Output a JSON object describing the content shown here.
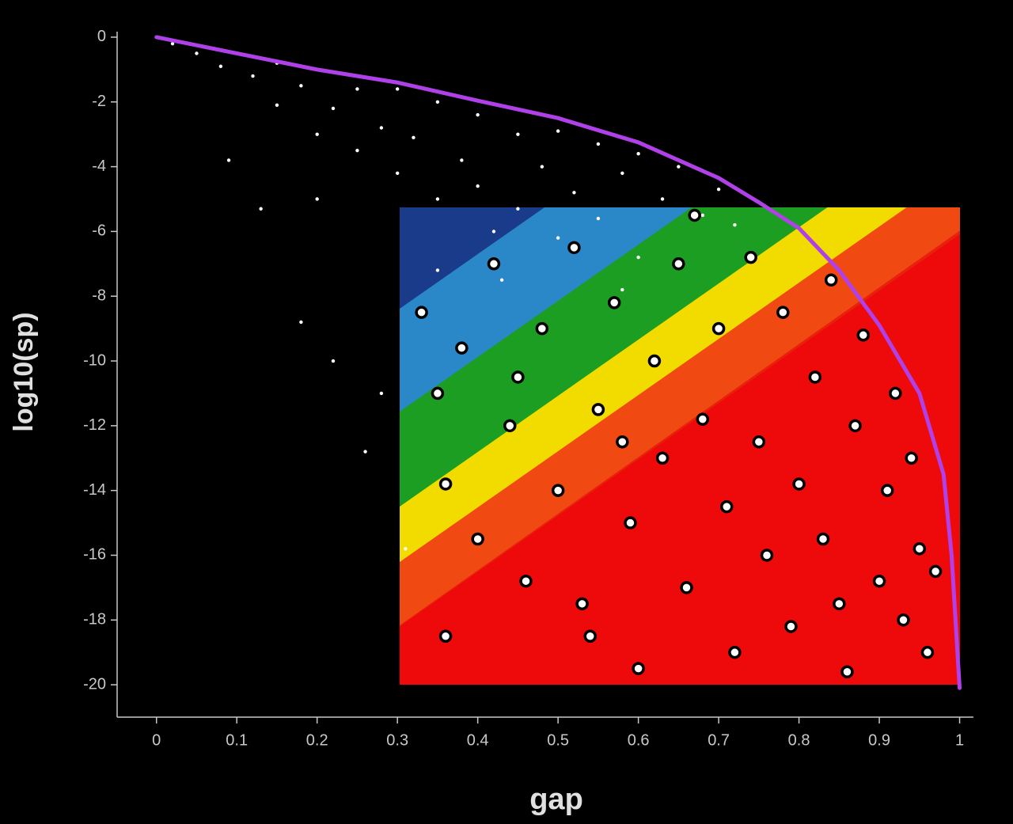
{
  "chart_data": {
    "type": "scatter",
    "x_label": "gap",
    "y_label": "log10(sp)",
    "xlim": [
      -0.049,
      1.03
    ],
    "ylim": [
      -21,
      0.17
    ],
    "xticks": [
      0,
      0.1,
      0.2,
      0.3,
      0.4,
      0.5,
      0.6,
      0.7,
      0.8,
      0.9,
      1
    ],
    "yticks": [
      0,
      -2,
      -4,
      -6,
      -8,
      -10,
      -12,
      -14,
      -16,
      -18,
      -20
    ],
    "axis_color": "#c8c8c8",
    "series": [
      {
        "type": "scatter",
        "style": "dot",
        "color": "#ffffff",
        "x": [
          0.02,
          0.05,
          0.08,
          0.1,
          0.12,
          0.15,
          0.15,
          0.18,
          0.2,
          0.2,
          0.22,
          0.25,
          0.25,
          0.28,
          0.3,
          0.3,
          0.32,
          0.35,
          0.35,
          0.38,
          0.4,
          0.4,
          0.42,
          0.45,
          0.45,
          0.48,
          0.5,
          0.5,
          0.52,
          0.55,
          0.55,
          0.58,
          0.6,
          0.6,
          0.63,
          0.65,
          0.68,
          0.7,
          0.72,
          0.2,
          0.18,
          0.22,
          0.26,
          0.28,
          0.31,
          0.13,
          0.09,
          0.35,
          0.43,
          0.58
        ],
        "values": [
          -0.2,
          -0.5,
          -0.9,
          -0.5,
          -1.2,
          -0.8,
          -2.1,
          -1.5,
          -1.0,
          -3.0,
          -2.2,
          -1.6,
          -3.5,
          -2.8,
          -1.6,
          -4.2,
          -3.1,
          -2.0,
          -5.0,
          -3.8,
          -2.4,
          -4.6,
          -6.0,
          -3.0,
          -5.3,
          -4.0,
          -2.9,
          -6.2,
          -4.8,
          -3.3,
          -5.6,
          -4.2,
          -3.6,
          -6.8,
          -5.0,
          -4.0,
          -5.5,
          -4.7,
          -5.8,
          -5.0,
          -8.8,
          -10.0,
          -12.8,
          -11.0,
          -15.8,
          -5.3,
          -3.8,
          -7.2,
          -7.5,
          -7.8
        ]
      },
      {
        "type": "scatter",
        "style": "ring",
        "color": "#ffffff",
        "x": [
          0.33,
          0.35,
          0.36,
          0.38,
          0.4,
          0.42,
          0.44,
          0.46,
          0.48,
          0.5,
          0.52,
          0.54,
          0.55,
          0.57,
          0.59,
          0.6,
          0.62,
          0.63,
          0.65,
          0.66,
          0.68,
          0.7,
          0.71,
          0.72,
          0.74,
          0.75,
          0.76,
          0.78,
          0.79,
          0.8,
          0.82,
          0.83,
          0.84,
          0.86,
          0.87,
          0.88,
          0.9,
          0.91,
          0.92,
          0.93,
          0.94,
          0.95,
          0.96,
          0.97,
          0.36,
          0.45,
          0.53,
          0.67,
          0.85,
          0.58
        ],
        "values": [
          -8.5,
          -11.0,
          -13.8,
          -9.6,
          -15.5,
          -7.0,
          -12.0,
          -16.8,
          -9.0,
          -14.0,
          -6.5,
          -18.5,
          -11.5,
          -8.2,
          -15.0,
          -19.5,
          -10.0,
          -13.0,
          -7.0,
          -17.0,
          -11.8,
          -9.0,
          -14.5,
          -19.0,
          -6.8,
          -12.5,
          -16.0,
          -8.5,
          -18.2,
          -13.8,
          -10.5,
          -15.5,
          -7.5,
          -19.6,
          -12.0,
          -9.2,
          -16.8,
          -14.0,
          -11.0,
          -18.0,
          -13.0,
          -15.8,
          -19.0,
          -16.5,
          -18.5,
          -10.5,
          -17.5,
          -5.5,
          -17.5,
          -12.5
        ]
      },
      {
        "type": "line",
        "color": "#b040e8",
        "x": [
          0,
          0.1,
          0.2,
          0.3,
          0.4,
          0.5,
          0.6,
          0.7,
          0.75,
          0.8,
          0.85,
          0.9,
          0.95,
          0.98,
          0.99,
          1
        ],
        "values": [
          0,
          -0.5,
          -1.0,
          -1.4,
          -1.96,
          -2.5,
          -3.25,
          -4.35,
          -5.1,
          -5.9,
          -7.2,
          -8.9,
          -11.0,
          -13.5,
          -16.0,
          -20.1
        ]
      }
    ]
  }
}
